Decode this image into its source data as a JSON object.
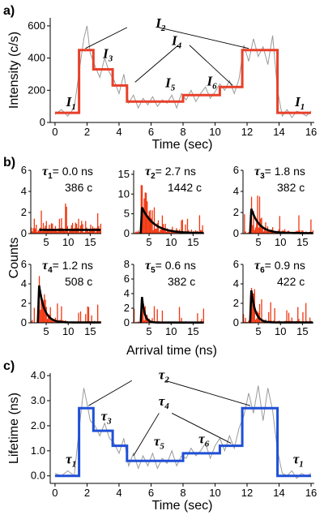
{
  "colors": {
    "noise": "#9a9a9a",
    "intensity_step": "#e8402a",
    "histogram": "#f2360f",
    "fit": "#000000",
    "lifetime_step": "#1f4fd6"
  },
  "chart_data": [
    {
      "type": "line",
      "panel_label": "a)",
      "xlabel": "Time (sec)",
      "ylabel": "Intensity (c/s)",
      "xlim": [
        -0.3,
        16.2
      ],
      "ylim": [
        0,
        650
      ],
      "xticks": [
        0,
        2,
        4,
        6,
        8,
        10,
        12,
        14,
        16
      ],
      "yticks": [
        0,
        200,
        400,
        600
      ],
      "series": [
        {
          "role": "levels",
          "color": "#e8402a",
          "x": [
            0,
            1.5,
            1.5,
            2.4,
            2.4,
            3.6,
            3.6,
            4.5,
            4.5,
            5.6,
            5.6,
            8.0,
            8.0,
            10.3,
            10.3,
            11.7,
            11.7,
            13.9,
            13.9,
            16.0
          ],
          "y": [
            60,
            60,
            450,
            450,
            330,
            330,
            230,
            230,
            130,
            130,
            130,
            130,
            170,
            170,
            220,
            220,
            450,
            450,
            60,
            60
          ]
        },
        {
          "role": "raw",
          "color": "#9a9a9a",
          "x": [
            0,
            0.4,
            0.8,
            1.2,
            1.6,
            1.8,
            2.0,
            2.2,
            2.5,
            2.8,
            3.1,
            3.4,
            3.7,
            4.0,
            4.3,
            4.6,
            4.9,
            5.2,
            5.5,
            5.8,
            6.1,
            6.4,
            6.7,
            7.0,
            7.3,
            7.6,
            7.9,
            8.2,
            8.5,
            8.8,
            9.1,
            9.4,
            9.7,
            10.0,
            10.3,
            10.6,
            10.9,
            11.2,
            11.5,
            11.8,
            12.1,
            12.4,
            12.7,
            13.0,
            13.3,
            13.6,
            13.9,
            14.2,
            14.5,
            14.8,
            15.1,
            15.4,
            15.7,
            16.0
          ],
          "y": [
            50,
            80,
            40,
            90,
            380,
            520,
            600,
            430,
            350,
            280,
            400,
            310,
            260,
            180,
            300,
            120,
            170,
            90,
            150,
            110,
            160,
            100,
            140,
            120,
            170,
            90,
            180,
            140,
            200,
            130,
            180,
            220,
            150,
            190,
            240,
            200,
            260,
            180,
            270,
            480,
            380,
            520,
            410,
            470,
            360,
            540,
            200,
            40,
            80,
            30,
            70,
            60,
            40,
            70
          ]
        }
      ],
      "annotations": [
        {
          "text": "I",
          "sub": "1",
          "x": 1.0,
          "y": 100
        },
        {
          "text": "I",
          "sub": "1",
          "x": 15.3,
          "y": 100
        },
        {
          "text": "I",
          "sub": "2",
          "x": 6.6,
          "y": 590
        },
        {
          "text": "I",
          "sub": "3",
          "x": 3.3,
          "y": 400
        },
        {
          "text": "I",
          "sub": "4",
          "x": 7.6,
          "y": 480
        },
        {
          "text": "I",
          "sub": "5",
          "x": 7.2,
          "y": 220
        },
        {
          "text": "I",
          "sub": "6",
          "x": 9.8,
          "y": 230
        }
      ],
      "pointer_lines": [
        {
          "label": "I2",
          "from": [
            4.5,
            590
          ],
          "to": [
            1.9,
            460
          ]
        },
        {
          "label": "I2",
          "from": [
            6.5,
            590
          ],
          "to": [
            12.1,
            460
          ]
        },
        {
          "label": "I4",
          "from": [
            7.7,
            480
          ],
          "to": [
            5.0,
            250
          ]
        },
        {
          "label": "I4",
          "from": [
            8.4,
            480
          ],
          "to": [
            11.1,
            230
          ]
        }
      ]
    },
    {
      "type": "bar",
      "panel_label": "b)",
      "ylabel": "Counts",
      "xlabel": "Arrival time (ns)",
      "xlim": [
        1.5,
        17.5
      ],
      "xticks": [
        5,
        10,
        15
      ],
      "subplots": [
        {
          "id": "tau1",
          "tau_sub": "1",
          "lifetime": "= 0.0 ns",
          "counts": "386 c",
          "ylim": [
            0,
            6
          ],
          "yticks": [
            0,
            2,
            4,
            6
          ],
          "fit_amplitude": 0,
          "fit_decay_ns": 0,
          "baseline": 0.5
        },
        {
          "id": "tau2",
          "tau_sub": "2",
          "lifetime": "= 2.7 ns",
          "counts": "1442 c",
          "ylim": [
            0,
            16
          ],
          "yticks": [
            0,
            5,
            10,
            15
          ],
          "fit_amplitude": 6.5,
          "fit_decay_ns": 2.7,
          "baseline": 0.4
        },
        {
          "id": "tau3",
          "tau_sub": "3",
          "lifetime": "= 1.8 ns",
          "counts": "382 c",
          "ylim": [
            0,
            6
          ],
          "yticks": [
            0,
            2,
            4,
            6
          ],
          "fit_amplitude": 2.3,
          "fit_decay_ns": 1.8,
          "baseline": 0.15
        },
        {
          "id": "tau4",
          "tau_sub": "4",
          "lifetime": "= 1.2 ns",
          "counts": "508 c",
          "ylim": [
            0,
            6
          ],
          "yticks": [
            0,
            2,
            4,
            6
          ],
          "fit_amplitude": 3.8,
          "fit_decay_ns": 1.2,
          "baseline": 0.1
        },
        {
          "id": "tau5",
          "tau_sub": "5",
          "lifetime": "= 0.6 ns",
          "counts": "382 c",
          "ylim": [
            0,
            8
          ],
          "yticks": [
            0,
            2,
            4,
            6,
            8
          ],
          "fit_amplitude": 3.5,
          "fit_decay_ns": 0.6,
          "baseline": 0.1
        },
        {
          "id": "tau6",
          "tau_sub": "6",
          "lifetime": "= 0.9 ns",
          "counts": "422 c",
          "ylim": [
            0,
            6
          ],
          "yticks": [
            0,
            2,
            4,
            6
          ],
          "fit_amplitude": 3.3,
          "fit_decay_ns": 0.9,
          "baseline": 0.1
        }
      ]
    },
    {
      "type": "line",
      "panel_label": "c)",
      "xlabel": "Time (sec)",
      "ylabel": "Lifetime (ns)",
      "xlim": [
        -0.3,
        16.2
      ],
      "ylim": [
        -0.3,
        4.1
      ],
      "xticks": [
        0,
        2,
        4,
        6,
        8,
        10,
        12,
        14,
        16
      ],
      "yticks": [
        0.0,
        1.0,
        2.0,
        3.0,
        4.0
      ],
      "ytick_labels": [
        "0.0",
        "1.0",
        "2.0",
        "3.0",
        "4.0"
      ],
      "series": [
        {
          "role": "levels",
          "color": "#1f4fd6",
          "x": [
            0,
            1.5,
            1.5,
            2.4,
            2.4,
            3.6,
            3.6,
            4.5,
            4.5,
            5.6,
            5.6,
            8.0,
            8.0,
            10.3,
            10.3,
            11.7,
            11.7,
            13.9,
            13.9,
            16.0
          ],
          "y": [
            0.0,
            0.0,
            2.7,
            2.7,
            1.8,
            1.8,
            1.2,
            1.2,
            0.6,
            0.6,
            0.6,
            0.6,
            0.9,
            0.9,
            1.2,
            1.2,
            2.7,
            2.7,
            0.0,
            0.0
          ]
        },
        {
          "role": "raw",
          "color": "#9a9a9a",
          "x": [
            0,
            0.4,
            0.8,
            1.2,
            1.6,
            1.8,
            2.0,
            2.2,
            2.5,
            2.8,
            3.1,
            3.4,
            3.7,
            4.0,
            4.3,
            4.6,
            4.9,
            5.2,
            5.5,
            5.8,
            6.1,
            6.4,
            6.7,
            7.0,
            7.3,
            7.6,
            7.9,
            8.2,
            8.5,
            8.8,
            9.1,
            9.4,
            9.7,
            10.0,
            10.3,
            10.6,
            10.9,
            11.2,
            11.5,
            11.8,
            12.1,
            12.4,
            12.7,
            13.0,
            13.3,
            13.6,
            13.9,
            14.2,
            14.5,
            14.8,
            15.1,
            15.4,
            15.7,
            16.0
          ],
          "y": [
            0.1,
            0.0,
            0.2,
            0.0,
            2.4,
            3.5,
            2.9,
            2.2,
            2.0,
            1.6,
            2.1,
            1.5,
            1.3,
            0.9,
            1.5,
            0.4,
            0.9,
            0.3,
            0.8,
            0.4,
            0.9,
            0.3,
            0.7,
            0.5,
            1.0,
            0.4,
            0.8,
            0.7,
            1.1,
            0.8,
            1.0,
            1.3,
            0.7,
            1.2,
            1.5,
            1.0,
            1.6,
            1.1,
            1.9,
            2.4,
            3.3,
            2.5,
            3.6,
            2.2,
            3.5,
            2.6,
            1.0,
            0.1,
            0.0,
            0.2,
            -0.1,
            0.1,
            0.0,
            0.1
          ]
        }
      ],
      "annotations": [
        {
          "text": "τ",
          "sub": "1",
          "x": 1.0,
          "y": 0.5
        },
        {
          "text": "τ",
          "sub": "1",
          "x": 15.2,
          "y": 0.5
        },
        {
          "text": "τ",
          "sub": "2",
          "x": 6.8,
          "y": 3.85
        },
        {
          "text": "τ",
          "sub": "3",
          "x": 3.2,
          "y": 2.2
        },
        {
          "text": "τ",
          "sub": "4",
          "x": 6.8,
          "y": 2.8
        },
        {
          "text": "τ",
          "sub": "5",
          "x": 6.5,
          "y": 1.2
        },
        {
          "text": "τ",
          "sub": "6",
          "x": 9.3,
          "y": 1.3
        }
      ],
      "pointer_lines": [
        {
          "label": "tau2",
          "from": [
            4.8,
            3.8
          ],
          "to": [
            2.1,
            2.8
          ]
        },
        {
          "label": "tau2",
          "from": [
            6.9,
            3.8
          ],
          "to": [
            12.2,
            2.8
          ]
        },
        {
          "label": "tau4",
          "from": [
            6.5,
            2.5
          ],
          "to": [
            4.9,
            0.8
          ]
        },
        {
          "label": "tau4",
          "from": [
            7.3,
            2.5
          ],
          "to": [
            11.0,
            1.3
          ]
        }
      ]
    }
  ]
}
